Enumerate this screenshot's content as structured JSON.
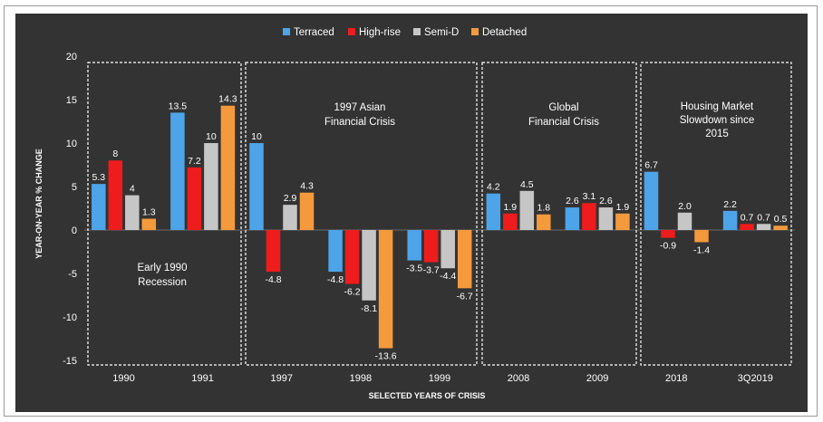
{
  "chart_data": {
    "type": "bar",
    "categories": [
      "1990",
      "1991",
      "1997",
      "1998",
      "1999",
      "2008",
      "2009",
      "2018",
      "3Q2019"
    ],
    "series": [
      {
        "name": "Terraced",
        "color": "#4ea4e8",
        "values": [
          5.3,
          13.5,
          10,
          -4.8,
          -3.5,
          4.2,
          2.6,
          6.7,
          2.2
        ],
        "labels": [
          "5.3",
          "13.5",
          "10",
          "-4.8",
          "-3.5",
          "4.2",
          "2.6",
          "6.7",
          "2.2"
        ]
      },
      {
        "name": "High-rise",
        "color": "#ee1c1c",
        "values": [
          8,
          7.2,
          -4.8,
          -6.2,
          -3.7,
          1.9,
          3.1,
          -0.9,
          0.7
        ],
        "labels": [
          "8",
          "7.2",
          "-4.8",
          "-6.2",
          "-3.7",
          "1.9",
          "3.1",
          "-0.9",
          "0.7"
        ]
      },
      {
        "name": "Semi-D",
        "color": "#c6c6c6",
        "values": [
          4,
          10,
          2.9,
          -8.1,
          -4.4,
          4.5,
          2.6,
          2.0,
          0.7
        ],
        "labels": [
          "4",
          "10",
          "2.9",
          "-8.1",
          "-4.4",
          "4.5",
          "2.6",
          "2.0",
          "0.7"
        ]
      },
      {
        "name": "Detached",
        "color": "#f59a3c",
        "values": [
          1.3,
          14.3,
          4.3,
          -13.6,
          -6.7,
          1.8,
          1.9,
          -1.4,
          0.5
        ],
        "labels": [
          "1.3",
          "14.3",
          "4.3",
          "-13.6",
          "-6.7",
          "1.8",
          "1.9",
          "-1.4",
          "0.5"
        ]
      }
    ],
    "ylim": [
      -15,
      20
    ],
    "yticks": [
      20,
      15,
      10,
      5,
      0,
      -5,
      -10,
      -15
    ],
    "xlabel": "SELECTED YEARS OF CRISIS",
    "ylabel": "YEAR-ON-YEAR % CHANGE",
    "legend_position": "top-center",
    "grid": false,
    "background": "#333333",
    "periods": [
      {
        "lines": [
          "Early 1990",
          "Recession"
        ],
        "categories": [
          "1990",
          "1991"
        ]
      },
      {
        "lines": [
          "1997 Asian",
          "Financial Crisis"
        ],
        "categories": [
          "1997",
          "1998",
          "1999"
        ]
      },
      {
        "lines": [
          "Global",
          "Financial Crisis"
        ],
        "categories": [
          "2008",
          "2009"
        ]
      },
      {
        "lines": [
          "Housing Market",
          "Slowdown since",
          "2015"
        ],
        "categories": [
          "2018",
          "3Q2019"
        ]
      }
    ]
  }
}
